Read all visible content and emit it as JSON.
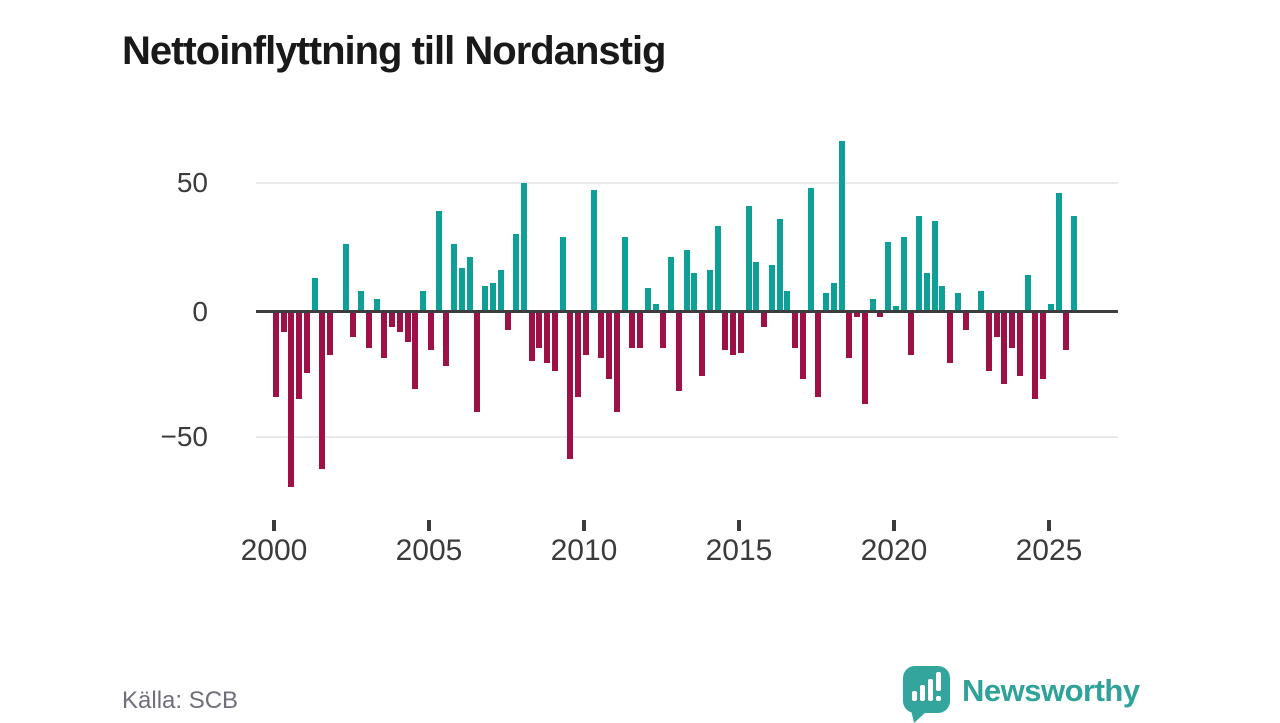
{
  "title": "Nettoinflyttning till Nordanstig",
  "source": "Källa: SCB",
  "branding": {
    "logo_text": "Newsworthy",
    "logo_icon": "bar-chart-exclamation-icon"
  },
  "colors": {
    "positive_bar": "#0ea096",
    "negative_bar": "#9d1146",
    "axis": "#3d3d3d",
    "grid": "#e9e9e9",
    "tick_text": "#3b3b3b",
    "source_text": "#6f6f79",
    "brand_teal": "#33a59d",
    "background": "#ffffff"
  },
  "chart_data": {
    "type": "bar",
    "title": "Nettoinflyttning till Nordanstig",
    "x_start": "2000-Q1",
    "frequency": "quarterly",
    "x_tick_labels": [
      "2000",
      "2005",
      "2010",
      "2015",
      "2020",
      "2025"
    ],
    "y_tick_labels": [
      "50",
      "0",
      "−50"
    ],
    "ylim": [
      -75,
      70
    ],
    "grid": "horizontal",
    "legend": "none",
    "values": [
      -33,
      -8,
      -68,
      -34,
      -24,
      13,
      -61,
      -17,
      0,
      26,
      -10,
      8,
      -14,
      5,
      -18,
      -6,
      -8,
      -12,
      -30,
      8,
      -15,
      39,
      -21,
      26,
      17,
      21,
      -39,
      10,
      11,
      16,
      -7,
      30,
      50,
      -19,
      -14,
      -20,
      -23,
      29,
      -57,
      -33,
      -17,
      47,
      -18,
      -26,
      -39,
      29,
      -14,
      -14,
      9,
      3,
      -14,
      21,
      -31,
      24,
      15,
      -25,
      16,
      33,
      -15,
      -17,
      -16,
      41,
      19,
      -6,
      18,
      36,
      8,
      -14,
      -26,
      48,
      -33,
      7,
      11,
      66,
      -18,
      -2,
      -36,
      5,
      -2,
      27,
      2,
      29,
      -17,
      37,
      15,
      35,
      10,
      -20,
      7,
      -7,
      0,
      8,
      -23,
      -10,
      -28,
      -14,
      -25,
      14,
      -34,
      -26,
      3,
      46,
      -15,
      37
    ]
  }
}
